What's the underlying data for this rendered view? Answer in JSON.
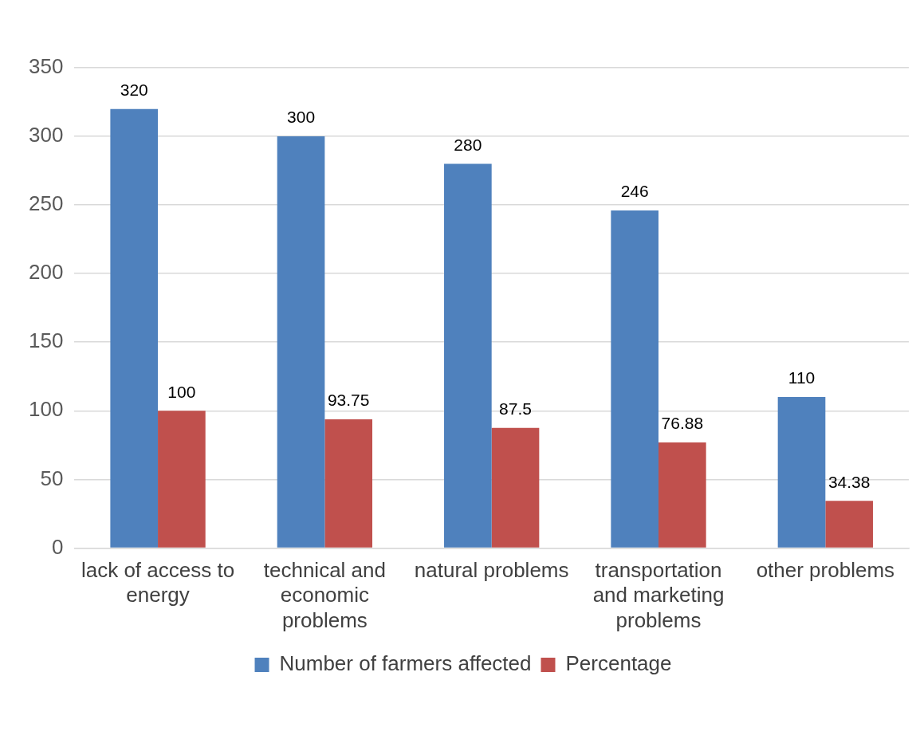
{
  "chart_data": {
    "type": "bar",
    "categories": [
      "lack of access to energy",
      "technical and economic problems",
      "natural problems",
      "transportation and marketing problems",
      "other problems"
    ],
    "series": [
      {
        "name": "Number of farmers affected",
        "color": "#4f81bd",
        "values": [
          320,
          300,
          280,
          246,
          110
        ]
      },
      {
        "name": "Percentage",
        "color": "#c0504d",
        "values": [
          100,
          93.75,
          87.5,
          76.88,
          34.38
        ]
      }
    ],
    "ylim": [
      0,
      350
    ],
    "yticks": [
      0,
      50,
      100,
      150,
      200,
      250,
      300,
      350
    ],
    "grid": "y",
    "legend": "bottom",
    "data_labels": true
  }
}
